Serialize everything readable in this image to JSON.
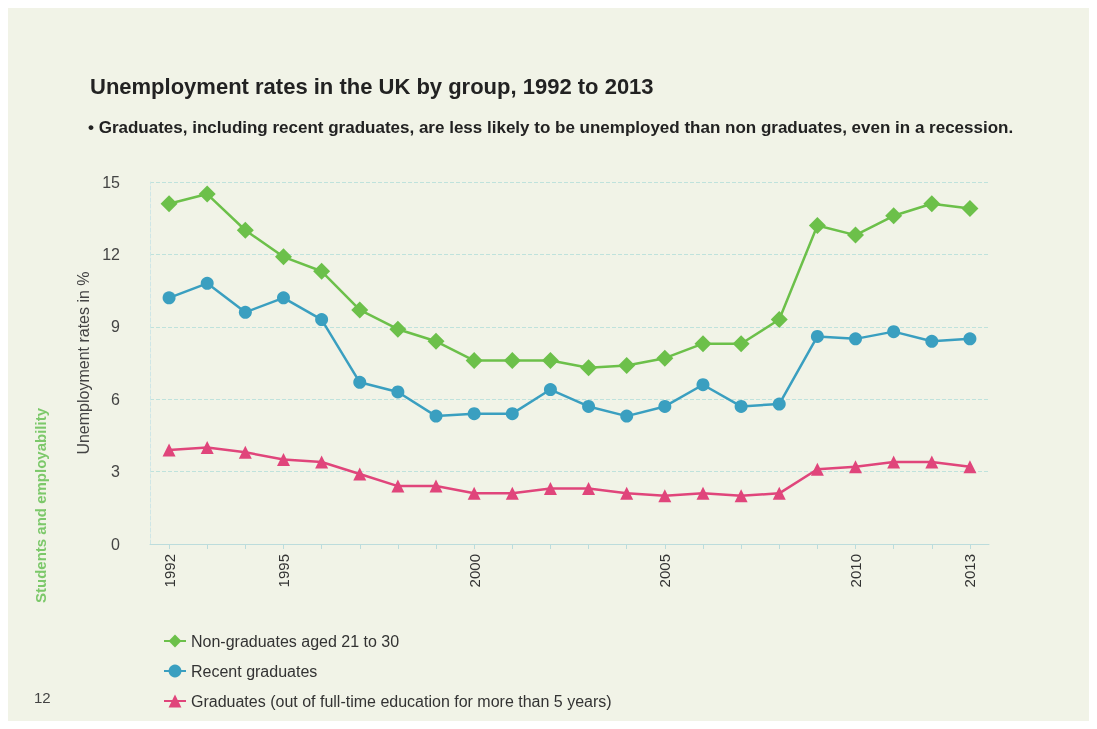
{
  "chart_data": {
    "type": "line",
    "title": "Unemployment rates in the UK by group, 1992 to 2013",
    "subtitle": "• Graduates, including recent graduates, are less likely to be unemployed than non graduates, even in a recession.",
    "ylabel": "Unemployment rates in %",
    "annotations": [
      "Students and employability",
      "12"
    ],
    "x": [
      1992,
      1993,
      1994,
      1995,
      1996,
      1997,
      1998,
      1999,
      2000,
      2001,
      2002,
      2003,
      2004,
      2005,
      2006,
      2007,
      2008,
      2009,
      2010,
      2011,
      2012,
      2013
    ],
    "series": [
      {
        "name": "Non-graduates aged 21 to 30",
        "color": "#6cc04a",
        "marker": "diamond",
        "values": [
          14.1,
          14.5,
          13.0,
          11.9,
          11.3,
          9.7,
          8.9,
          8.4,
          7.6,
          7.6,
          7.6,
          7.3,
          7.4,
          7.7,
          8.3,
          8.3,
          9.3,
          13.2,
          12.8,
          13.6,
          14.1,
          13.9
        ]
      },
      {
        "name": "Recent graduates",
        "color": "#3a9fc0",
        "marker": "circle",
        "values": [
          10.2,
          10.8,
          9.6,
          10.2,
          9.3,
          6.7,
          6.3,
          5.3,
          5.4,
          5.4,
          6.4,
          5.7,
          5.3,
          5.7,
          6.6,
          5.7,
          5.8,
          8.6,
          8.5,
          8.8,
          8.4,
          8.5
        ]
      },
      {
        "name": "Graduates (out of full-time education for more than 5 years)",
        "color": "#e0457b",
        "marker": "triangle",
        "values": [
          3.9,
          4.0,
          3.8,
          3.5,
          3.4,
          2.9,
          2.4,
          2.4,
          2.1,
          2.1,
          2.3,
          2.3,
          2.1,
          2.0,
          2.1,
          2.0,
          2.1,
          3.1,
          3.2,
          3.4,
          3.4,
          3.2
        ]
      }
    ],
    "xlim": [
      1991.5,
      2013.5
    ],
    "xticks": [
      1992,
      {
        "value": 1993,
        "label": null
      },
      {
        "value": 1994,
        "label": null
      },
      1995,
      {
        "value": 1996,
        "label": null
      },
      {
        "value": 1997,
        "label": null
      },
      {
        "value": 1998,
        "label": null
      },
      {
        "value": 1999,
        "label": null
      },
      2000,
      {
        "value": 2001,
        "label": null
      },
      {
        "value": 2002,
        "label": null
      },
      {
        "value": 2003,
        "label": null
      },
      {
        "value": 2004,
        "label": null
      },
      2005,
      {
        "value": 2006,
        "label": null
      },
      {
        "value": 2007,
        "label": null
      },
      {
        "value": 2008,
        "label": null
      },
      {
        "value": 2009,
        "label": null
      },
      2010,
      {
        "value": 2011,
        "label": null
      },
      {
        "value": 2012,
        "label": null
      },
      2013
    ],
    "ylim": [
      0,
      15
    ],
    "yticks": [
      0,
      3,
      6,
      9,
      12,
      15
    ],
    "grid": "y",
    "legend": "bottom left",
    "line_style": "solid"
  }
}
